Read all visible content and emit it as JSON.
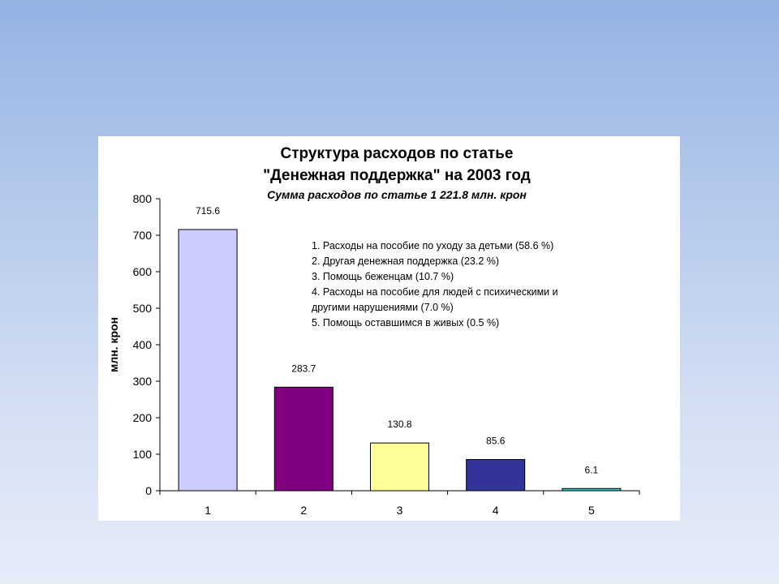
{
  "chart_data": {
    "type": "bar",
    "title": [
      "Структура расходов по статье",
      "\"Денежная поддержка\" на 2003 год"
    ],
    "subtitle": "Сумма расходов по статье 1 221.8  млн. крон",
    "xlabel": "",
    "ylabel": "млн. крон",
    "ylim": [
      0,
      800
    ],
    "yticks": [
      "0",
      "100",
      "200",
      "300",
      "400",
      "500",
      "600",
      "700",
      "800"
    ],
    "categories": [
      "1",
      "2",
      "3",
      "4",
      "5"
    ],
    "values": [
      715.6,
      283.7,
      130.8,
      85.6,
      6.1
    ],
    "data_labels": [
      "715.6",
      "283.7",
      "130.8",
      "85.6",
      "6.1"
    ],
    "colors": [
      "#ccccff",
      "#800080",
      "#ffff99",
      "#333399",
      "#33cccc"
    ],
    "grid": false,
    "legend_position": "top-right",
    "annotation": [
      "1. Расходы на пособие по уходу за детьми  (58.6  %)",
      "2. Другая денежная поддержка (23.2  %)",
      "3. Помощь беженцам (10.7  %)",
      "4. Расходы на пособие для людей с психическими и",
      "другими нарушениями (7.0  %)",
      "5. Помощь оставшимся в живых (0.5  %)"
    ]
  }
}
